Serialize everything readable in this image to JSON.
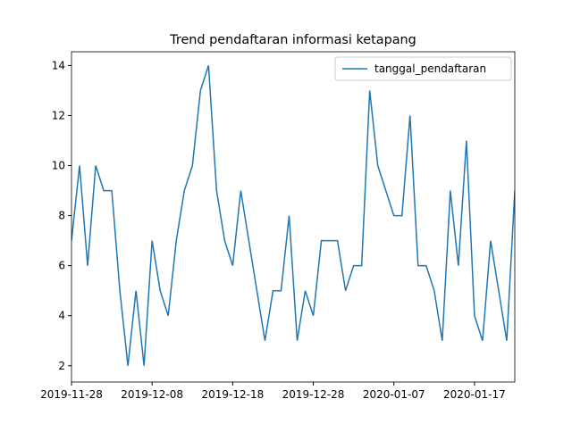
{
  "chart_data": {
    "type": "line",
    "title": "Trend pendaftaran informasi ketapang",
    "x": [
      "2019-11-28",
      "2019-11-29",
      "2019-11-30",
      "2019-12-01",
      "2019-12-02",
      "2019-12-03",
      "2019-12-04",
      "2019-12-05",
      "2019-12-06",
      "2019-12-07",
      "2019-12-08",
      "2019-12-09",
      "2019-12-10",
      "2019-12-11",
      "2019-12-12",
      "2019-12-13",
      "2019-12-14",
      "2019-12-15",
      "2019-12-16",
      "2019-12-17",
      "2019-12-18",
      "2019-12-19",
      "2019-12-20",
      "2019-12-21",
      "2019-12-22",
      "2019-12-23",
      "2019-12-24",
      "2019-12-25",
      "2019-12-26",
      "2019-12-27",
      "2019-12-28",
      "2019-12-29",
      "2019-12-30",
      "2019-12-31",
      "2020-01-01",
      "2020-01-02",
      "2020-01-03",
      "2020-01-04",
      "2020-01-05",
      "2020-01-06",
      "2020-01-07",
      "2020-01-08",
      "2020-01-09",
      "2020-01-10",
      "2020-01-11",
      "2020-01-12",
      "2020-01-13",
      "2020-01-14",
      "2020-01-15",
      "2020-01-16",
      "2020-01-17",
      "2020-01-18",
      "2020-01-19",
      "2020-01-20",
      "2020-01-21",
      "2020-01-22"
    ],
    "series": [
      {
        "name": "tanggal_pendaftaran",
        "color": "#1f77b4",
        "values": [
          7,
          10,
          6,
          10,
          9,
          9,
          5,
          2,
          5,
          2,
          7,
          5,
          4,
          7,
          9,
          10,
          13,
          14,
          9,
          7,
          6,
          9,
          7,
          5,
          3,
          5,
          5,
          8,
          3,
          5,
          4,
          7,
          7,
          7,
          5,
          6,
          6,
          13,
          10,
          9,
          8,
          8,
          12,
          6,
          6,
          5,
          3,
          9,
          6,
          11,
          4,
          3,
          7,
          5,
          3,
          9
        ]
      }
    ],
    "xlim": [
      "2019-11-28",
      "2020-01-22"
    ],
    "xticks": [
      "2019-11-28",
      "2019-12-08",
      "2019-12-18",
      "2019-12-28",
      "2020-01-07",
      "2020-01-17"
    ],
    "ylim": [
      1.35,
      14.55
    ],
    "yticks": [
      2,
      4,
      6,
      8,
      10,
      12,
      14
    ],
    "legend": "upper right",
    "grid": false
  }
}
